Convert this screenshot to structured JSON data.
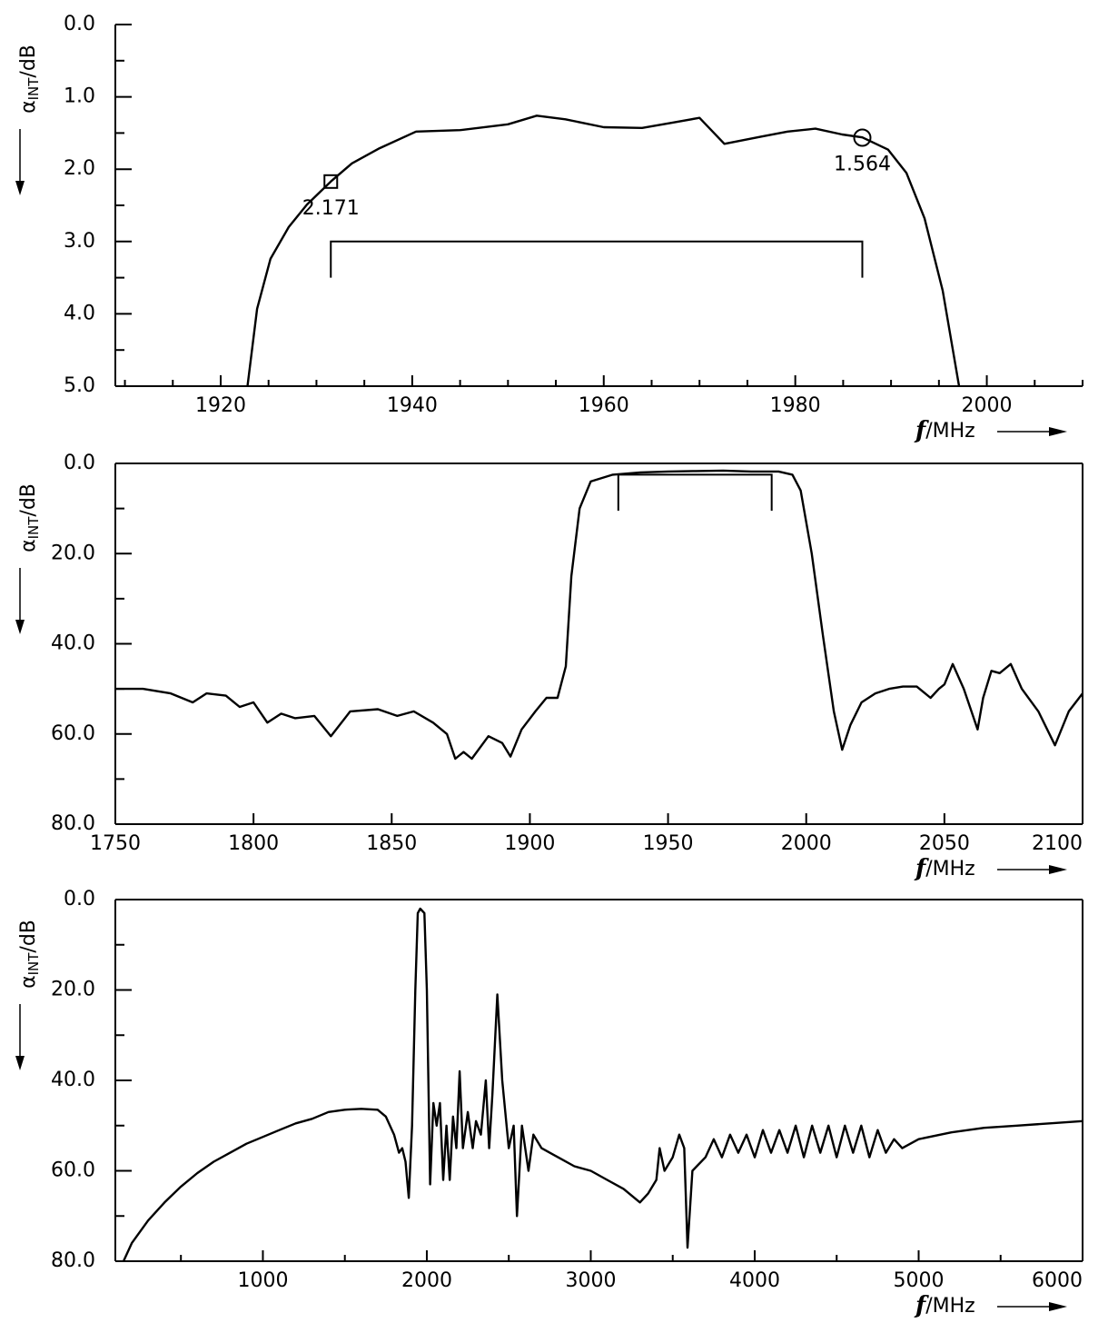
{
  "chart_data": [
    {
      "type": "line",
      "color": "#000000",
      "frame": false,
      "ylabel": {
        "symbol": "α",
        "subscript": "INT",
        "unit": "/dB"
      },
      "xlabel": {
        "symbol": "f",
        "unit": "/MHz"
      },
      "xlim": [
        1909,
        2010
      ],
      "xticks": [
        1920,
        1940,
        1960,
        1980,
        2000
      ],
      "xminorticks": [
        1910,
        1915,
        1925,
        1930,
        1935,
        1945,
        1950,
        1955,
        1965,
        1970,
        1975,
        1985,
        1990,
        1995,
        2005,
        2010
      ],
      "ylim": [
        5,
        0
      ],
      "yticks": [
        {
          "value": 0,
          "label": "0.0"
        },
        {
          "value": 1,
          "label": "1.0"
        },
        {
          "value": 2,
          "label": "2.0"
        },
        {
          "value": 3,
          "label": "3.0"
        },
        {
          "value": 4,
          "label": "4.0"
        },
        {
          "value": 5,
          "label": "5.0"
        }
      ],
      "yminorticks": [
        0.5,
        1.5,
        2.5,
        3.5,
        4.5
      ],
      "x": [
        1922.8,
        1923.8,
        1925.2,
        1927.1,
        1929.0,
        1931.5,
        1933.7,
        1936.6,
        1940.4,
        1945,
        1950,
        1953,
        1956,
        1960,
        1964,
        1967,
        1970,
        1972.6,
        1976.4,
        1979.2,
        1982.1,
        1984.9,
        1987,
        1989.7,
        1991.6,
        1993.5,
        1995.4,
        1997.1
      ],
      "y": [
        5.0,
        3.93,
        3.24,
        2.8,
        2.49,
        2.17,
        1.92,
        1.71,
        1.48,
        1.46,
        1.38,
        1.26,
        1.31,
        1.42,
        1.43,
        1.36,
        1.29,
        1.65,
        1.55,
        1.48,
        1.44,
        1.52,
        1.56,
        1.73,
        2.05,
        2.68,
        3.68,
        5.0
      ],
      "markers": [
        {
          "shape": "square",
          "x": 1931.5,
          "y": 2.171,
          "label": "2.171"
        },
        {
          "shape": "circle",
          "x": 1987,
          "y": 1.564,
          "label": "1.564"
        }
      ],
      "bracket": {
        "x": [
          1931.5,
          1987
        ],
        "y": [
          3.0,
          3.5
        ]
      }
    },
    {
      "type": "line",
      "color": "#000000",
      "frame": true,
      "ylabel": {
        "symbol": "α",
        "subscript": "INT",
        "unit": "/dB"
      },
      "xlabel": {
        "symbol": "f",
        "unit": "/MHz"
      },
      "xlim": [
        1750,
        2100
      ],
      "xticks": [
        1750,
        1800,
        1850,
        1900,
        1950,
        2000,
        2050,
        2100
      ],
      "xminorticks": [],
      "ylim": [
        80,
        0
      ],
      "yticks": [
        {
          "value": 0,
          "label": "0.0"
        },
        {
          "value": 20,
          "label": "20.0"
        },
        {
          "value": 40,
          "label": "40.0"
        },
        {
          "value": 60,
          "label": "60.0"
        },
        {
          "value": 80,
          "label": "80.0"
        }
      ],
      "yminorticks": [
        10,
        30,
        50,
        70
      ],
      "x": [
        1750,
        1760,
        1770,
        1778,
        1783,
        1790,
        1795,
        1800,
        1805,
        1810,
        1815,
        1822,
        1828,
        1835,
        1845,
        1852,
        1858,
        1865,
        1870,
        1873,
        1876,
        1879,
        1885,
        1890,
        1893,
        1897,
        1902,
        1906,
        1910,
        1913,
        1915,
        1918,
        1922,
        1930,
        1940,
        1950,
        1960,
        1970,
        1980,
        1990,
        1995,
        1998,
        2002,
        2006,
        2010,
        2013,
        2016,
        2020,
        2025,
        2030,
        2035,
        2040,
        2045,
        2048,
        2050,
        2053,
        2057,
        2062,
        2064,
        2067,
        2070,
        2074,
        2078,
        2084,
        2090,
        2095,
        2100
      ],
      "y": [
        50,
        50,
        51,
        53,
        51,
        51.5,
        54,
        53,
        57.5,
        55.5,
        56.5,
        56,
        60.5,
        55,
        54.5,
        56,
        55,
        57.5,
        60,
        65.5,
        64,
        65.5,
        60.5,
        62,
        65,
        59,
        55,
        52,
        52,
        45,
        25,
        10,
        4,
        2.5,
        2.0,
        1.8,
        1.7,
        1.6,
        1.8,
        1.8,
        2.5,
        6,
        20,
        38,
        55,
        63.5,
        58,
        53,
        51,
        50,
        49.5,
        49.5,
        52,
        50,
        49,
        44.5,
        50,
        59,
        52,
        46,
        46.5,
        44.5,
        50,
        55,
        62.5,
        55,
        51
      ],
      "bracket": {
        "x": [
          1932,
          1987.5
        ],
        "y": [
          2.5,
          10.5
        ]
      }
    },
    {
      "type": "line",
      "color": "#000000",
      "frame": true,
      "ylabel": {
        "symbol": "α",
        "subscript": "INT",
        "unit": "/dB"
      },
      "xlabel": {
        "symbol": "f",
        "unit": "/MHz"
      },
      "xlim": [
        100,
        6000
      ],
      "xticks": [
        1000,
        2000,
        3000,
        4000,
        5000,
        6000
      ],
      "xminorticks": [
        500,
        1500,
        2500,
        3500,
        4500,
        5500
      ],
      "ylim": [
        80,
        0
      ],
      "yticks": [
        {
          "value": 0,
          "label": "0.0"
        },
        {
          "value": 20,
          "label": "20.0"
        },
        {
          "value": 40,
          "label": "40.0"
        },
        {
          "value": 60,
          "label": "60.0"
        },
        {
          "value": 80,
          "label": "80.0"
        }
      ],
      "yminorticks": [
        10,
        30,
        50,
        70
      ],
      "x": [
        150,
        200,
        300,
        400,
        500,
        600,
        700,
        800,
        900,
        1000,
        1100,
        1200,
        1300,
        1400,
        1500,
        1600,
        1700,
        1750,
        1800,
        1830,
        1850,
        1870,
        1890,
        1910,
        1930,
        1945,
        1960,
        1985,
        2000,
        2020,
        2040,
        2060,
        2080,
        2100,
        2120,
        2140,
        2160,
        2180,
        2200,
        2220,
        2250,
        2280,
        2300,
        2330,
        2360,
        2380,
        2400,
        2430,
        2460,
        2500,
        2530,
        2550,
        2580,
        2620,
        2650,
        2700,
        2800,
        2900,
        3000,
        3100,
        3200,
        3300,
        3350,
        3400,
        3420,
        3450,
        3500,
        3540,
        3570,
        3590,
        3620,
        3700,
        3750,
        3800,
        3850,
        3900,
        3950,
        4000,
        4050,
        4100,
        4150,
        4200,
        4250,
        4300,
        4350,
        4400,
        4450,
        4500,
        4550,
        4600,
        4650,
        4700,
        4750,
        4800,
        4850,
        4900,
        5000,
        5200,
        5400,
        5600,
        5800,
        6000
      ],
      "y": [
        80,
        76,
        71,
        67,
        63.5,
        60.5,
        58,
        56,
        54,
        52.5,
        51,
        49.5,
        48.5,
        47,
        46.5,
        46.3,
        46.5,
        48,
        52,
        56,
        55,
        58,
        66,
        50,
        20,
        3,
        2,
        3,
        20,
        63,
        45,
        50,
        45,
        62,
        50,
        62,
        48,
        55,
        38,
        55,
        47,
        55,
        49,
        52,
        40,
        55,
        43,
        21,
        40,
        55,
        50,
        70,
        50,
        60,
        52,
        55,
        57,
        59,
        60,
        62,
        64,
        67,
        65,
        62,
        55,
        60,
        57,
        52,
        55,
        77,
        60,
        57,
        53,
        57,
        52,
        56,
        52,
        57,
        51,
        56,
        51,
        56,
        50,
        57,
        50,
        56,
        50,
        57,
        50,
        56,
        50,
        57,
        51,
        56,
        53,
        55,
        53,
        51.5,
        50.5,
        50,
        49.5,
        49
      ]
    }
  ]
}
